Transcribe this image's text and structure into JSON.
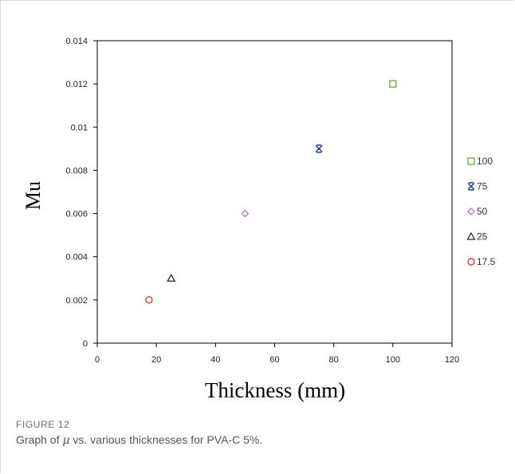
{
  "chart_data": {
    "type": "scatter",
    "xlabel": "Thickness (mm)",
    "ylabel": "Mu",
    "xlim": [
      0,
      120
    ],
    "ylim": [
      0,
      0.014
    ],
    "x_ticks": [
      "0",
      "20",
      "40",
      "60",
      "80",
      "100",
      "120"
    ],
    "y_ticks": [
      "0",
      "0.002",
      "0.004",
      "0.006",
      "0.008",
      "0.01",
      "0.012",
      "0.014"
    ],
    "grid": false,
    "legend_position": "right",
    "series": [
      {
        "name": "100",
        "marker": "square",
        "color": "#70ad47",
        "x": 100,
        "y": 0.012
      },
      {
        "name": "75",
        "marker": "star",
        "color": "#1f3d99",
        "x": 75,
        "y": 0.009
      },
      {
        "name": "50",
        "marker": "diamond",
        "color": "#a86bd6",
        "x": 50,
        "y": 0.006
      },
      {
        "name": "25",
        "marker": "triangle",
        "color": "#222222",
        "x": 25,
        "y": 0.003
      },
      {
        "name": "17.5",
        "marker": "circle",
        "color": "#e03a3a",
        "x": 17.5,
        "y": 0.002
      }
    ]
  },
  "figure": {
    "label": "FIGURE 12",
    "caption_pre": "Graph of ",
    "caption_symbol": "μ",
    "caption_post": " vs. various thicknesses for PVA-C 5%."
  }
}
